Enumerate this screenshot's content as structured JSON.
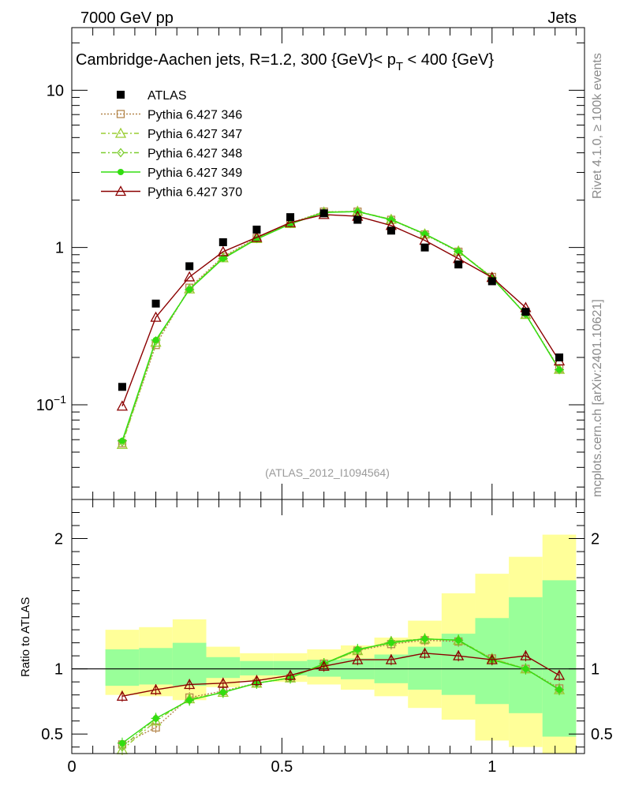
{
  "header": {
    "energy_label": "7000 GeV pp",
    "category_label": "Jets"
  },
  "chart_data": {
    "type": "line",
    "title": "Cambridge-Aachen jets, R=1.2,  300 {GeV}< p_T < 400 {GeV}",
    "title_parts": {
      "before_p": "Cambridge-Aachen jets, R=1.2,  300 {GeV}< p",
      "subscript": "T",
      "after": " < 400 {GeV}"
    },
    "reference_label": "(ATLAS_2012_I1094564)",
    "side_labels": {
      "rivet": "Rivet 4.1.0, ≥ 100k events",
      "mcplots": "mcplots.cern.ch [arXiv:2401.10621]"
    },
    "x": [
      0.12,
      0.2,
      0.28,
      0.36,
      0.44,
      0.52,
      0.6,
      0.68,
      0.76,
      0.84,
      0.92,
      1.0,
      1.08,
      1.16
    ],
    "x_bin_edges": [
      0.08,
      0.16,
      0.24,
      0.32,
      0.4,
      0.48,
      0.56,
      0.64,
      0.72,
      0.8,
      0.88,
      0.96,
      1.04,
      1.12,
      1.2
    ],
    "main_panel": {
      "yscale": "log",
      "ylim": [
        0.025,
        25
      ],
      "xlim": [
        0,
        1.22
      ],
      "y_tick_labels": [
        "10",
        "1",
        "10"
      ],
      "y_tick_exponent": "−1",
      "series": [
        {
          "name": "ATLAS",
          "marker": "filled-square",
          "color": "#000000",
          "values": [
            0.13,
            0.44,
            0.76,
            1.08,
            1.3,
            1.56,
            1.65,
            1.5,
            1.28,
            1.0,
            0.78,
            0.61,
            0.39,
            0.2
          ]
        },
        {
          "name": "Pythia 6.427 346",
          "marker": "open-square",
          "line": "dotted",
          "color": "#b5874d",
          "values": [
            0.057,
            0.24,
            0.555,
            0.875,
            1.15,
            1.43,
            1.69,
            1.69,
            1.5,
            1.21,
            0.94,
            0.65,
            0.375,
            0.17
          ]
        },
        {
          "name": "Pythia 6.427 347",
          "marker": "open-triangle",
          "line": "dash-dot",
          "color": "#9acd32",
          "values": [
            0.056,
            0.25,
            0.545,
            0.86,
            1.14,
            1.42,
            1.68,
            1.7,
            1.51,
            1.22,
            0.95,
            0.645,
            0.375,
            0.168
          ]
        },
        {
          "name": "Pythia 6.427 348",
          "marker": "open-diamond",
          "line": "dash-dot",
          "color": "#7ccd2f",
          "values": [
            0.058,
            0.255,
            0.545,
            0.86,
            1.14,
            1.42,
            1.68,
            1.69,
            1.51,
            1.22,
            0.95,
            0.64,
            0.378,
            0.167
          ]
        },
        {
          "name": "Pythia 6.427 349",
          "marker": "filled-circle-cross",
          "line": "solid",
          "color": "#33dd11",
          "values": [
            0.059,
            0.258,
            0.54,
            0.85,
            1.13,
            1.41,
            1.67,
            1.69,
            1.5,
            1.22,
            0.945,
            0.64,
            0.376,
            0.167
          ]
        },
        {
          "name": "Pythia 6.427 370",
          "marker": "open-triangle",
          "line": "solid",
          "color": "#8b0000",
          "values": [
            0.098,
            0.36,
            0.65,
            0.94,
            1.16,
            1.44,
            1.62,
            1.58,
            1.38,
            1.11,
            0.85,
            0.645,
            0.415,
            0.19
          ]
        }
      ]
    },
    "ratio_panel": {
      "ylabel": "Ratio to ATLAS",
      "ylim": [
        0.35,
        2.3
      ],
      "y_tick_labels": [
        "2",
        "1",
        "0.5"
      ],
      "x_tick_labels": [
        "0",
        "0.5",
        "1"
      ],
      "band_inner": [
        [
          0.87,
          1.15
        ],
        [
          0.88,
          1.16
        ],
        [
          0.87,
          1.2
        ],
        [
          0.93,
          1.09
        ],
        [
          0.95,
          1.06
        ],
        [
          0.95,
          1.06
        ],
        [
          0.94,
          1.07
        ],
        [
          0.92,
          1.08
        ],
        [
          0.89,
          1.11
        ],
        [
          0.84,
          1.17
        ],
        [
          0.8,
          1.27
        ],
        [
          0.73,
          1.39
        ],
        [
          0.66,
          1.55
        ],
        [
          0.48,
          1.68
        ]
      ],
      "band_outer": [
        [
          0.8,
          1.3
        ],
        [
          0.79,
          1.32
        ],
        [
          0.76,
          1.38
        ],
        [
          0.86,
          1.17
        ],
        [
          0.91,
          1.12
        ],
        [
          0.9,
          1.12
        ],
        [
          0.88,
          1.15
        ],
        [
          0.84,
          1.18
        ],
        [
          0.79,
          1.24
        ],
        [
          0.7,
          1.37
        ],
        [
          0.61,
          1.58
        ],
        [
          0.45,
          1.73
        ],
        [
          0.4,
          1.86
        ],
        [
          0.33,
          2.03
        ]
      ],
      "series": [
        {
          "name": "Pythia 6.427 346",
          "values": [
            0.42,
            0.55,
            0.78,
            0.83,
            0.89,
            0.93,
            1.04,
            1.14,
            1.19,
            1.22,
            1.21,
            1.08,
            1.0,
            0.85
          ]
        },
        {
          "name": "Pythia 6.427 347",
          "values": [
            0.38,
            0.6,
            0.77,
            0.82,
            0.89,
            0.93,
            1.04,
            1.14,
            1.21,
            1.23,
            1.22,
            1.08,
            1.0,
            0.84
          ]
        },
        {
          "name": "Pythia 6.427 348",
          "values": [
            0.4,
            0.62,
            0.76,
            0.82,
            0.89,
            0.93,
            1.04,
            1.14,
            1.21,
            1.23,
            1.22,
            1.07,
            1.0,
            0.84
          ]
        },
        {
          "name": "Pythia 6.427 349",
          "values": [
            0.43,
            0.62,
            0.76,
            0.82,
            0.89,
            0.93,
            1.04,
            1.15,
            1.2,
            1.23,
            1.22,
            1.07,
            1.0,
            0.84
          ]
        },
        {
          "name": "Pythia 6.427 370",
          "values": [
            0.79,
            0.84,
            0.88,
            0.89,
            0.91,
            0.95,
            1.02,
            1.07,
            1.07,
            1.12,
            1.1,
            1.07,
            1.1,
            0.95
          ]
        }
      ]
    }
  }
}
